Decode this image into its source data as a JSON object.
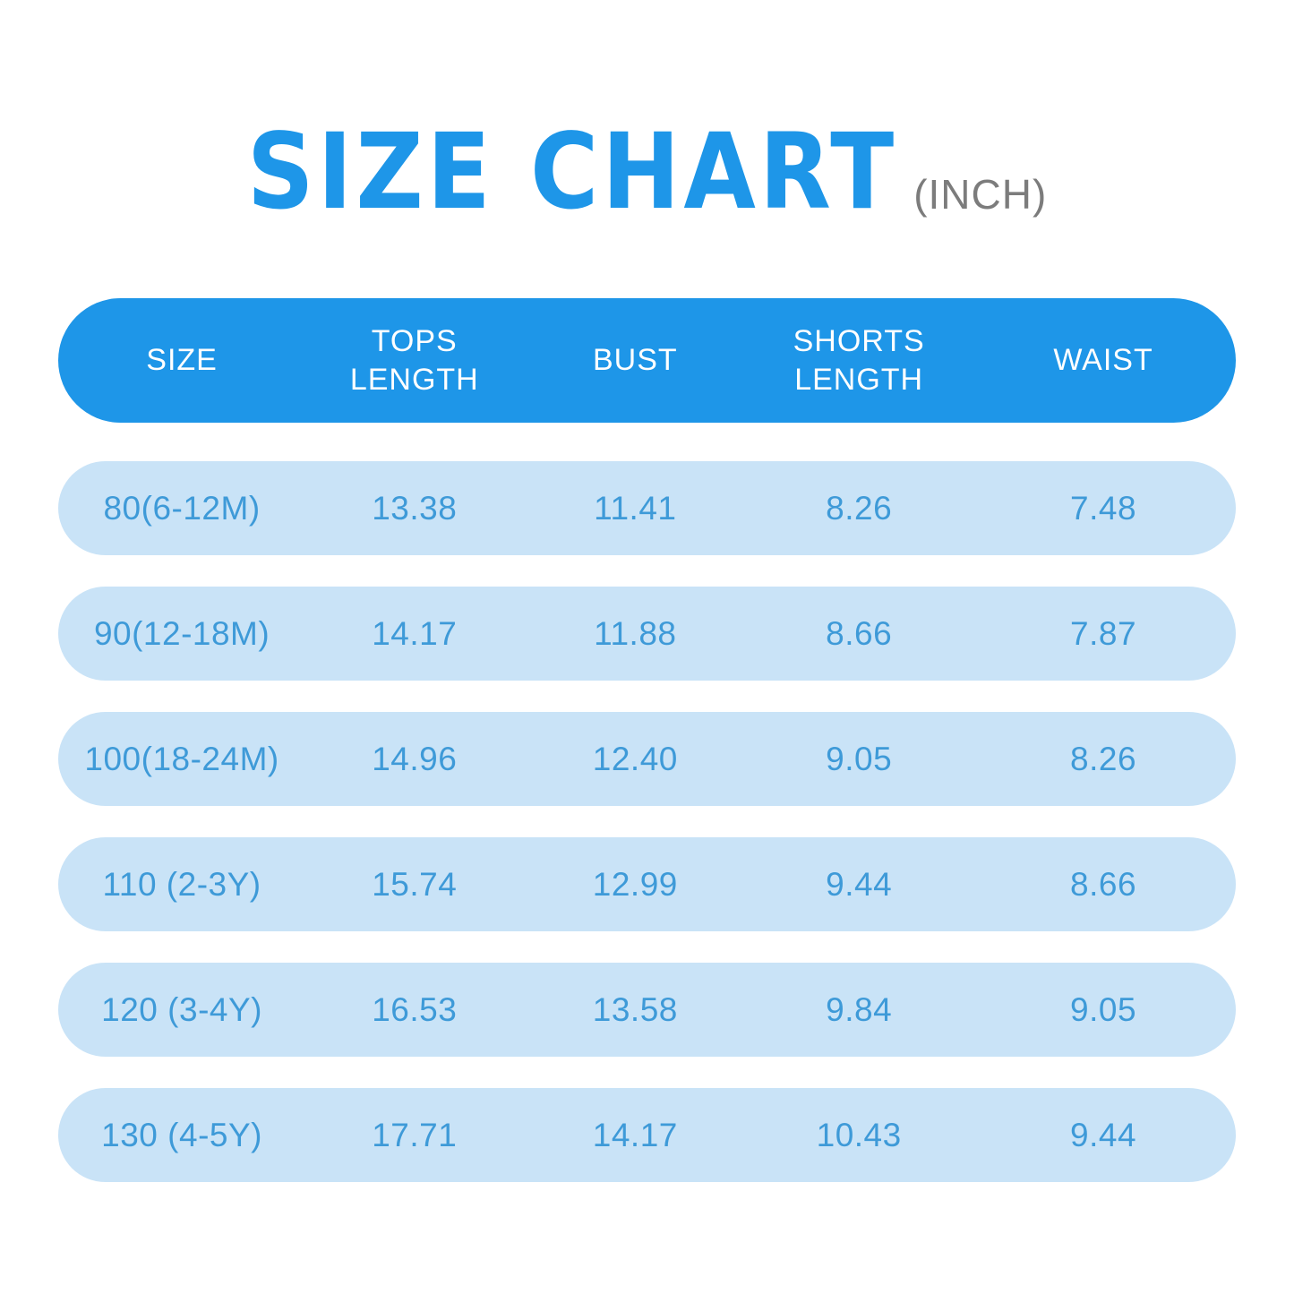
{
  "title": {
    "text": "SIZE CHART",
    "unit": "(INCH)"
  },
  "colors": {
    "primary_blue": "#1E96E8",
    "row_background": "#C9E3F7",
    "row_text": "#3E9AD8",
    "header_text": "#FFFFFF",
    "unit_text": "#7C7C7C",
    "page_background": "#FFFFFF"
  },
  "header": {
    "labels": [
      "SIZE",
      "TOPS\nLENGTH",
      "BUST",
      "SHORTS\nLENGTH",
      "WAIST"
    ]
  },
  "chart_data": {
    "type": "table",
    "title": "SIZE CHART",
    "unit": "INCH",
    "columns": [
      "SIZE",
      "TOPS LENGTH",
      "BUST",
      "SHORTS LENGTH",
      "WAIST"
    ],
    "rows": [
      [
        "80(6-12M)",
        "13.38",
        "11.41",
        "8.26",
        "7.48"
      ],
      [
        "90(12-18M)",
        "14.17",
        "11.88",
        "8.66",
        "7.87"
      ],
      [
        "100(18-24M)",
        "14.96",
        "12.40",
        "9.05",
        "8.26"
      ],
      [
        "110 (2-3Y)",
        "15.74",
        "12.99",
        "9.44",
        "8.66"
      ],
      [
        "120 (3-4Y)",
        "16.53",
        "13.58",
        "9.84",
        "9.05"
      ],
      [
        "130 (4-5Y)",
        "17.71",
        "14.17",
        "10.43",
        "9.44"
      ]
    ]
  }
}
